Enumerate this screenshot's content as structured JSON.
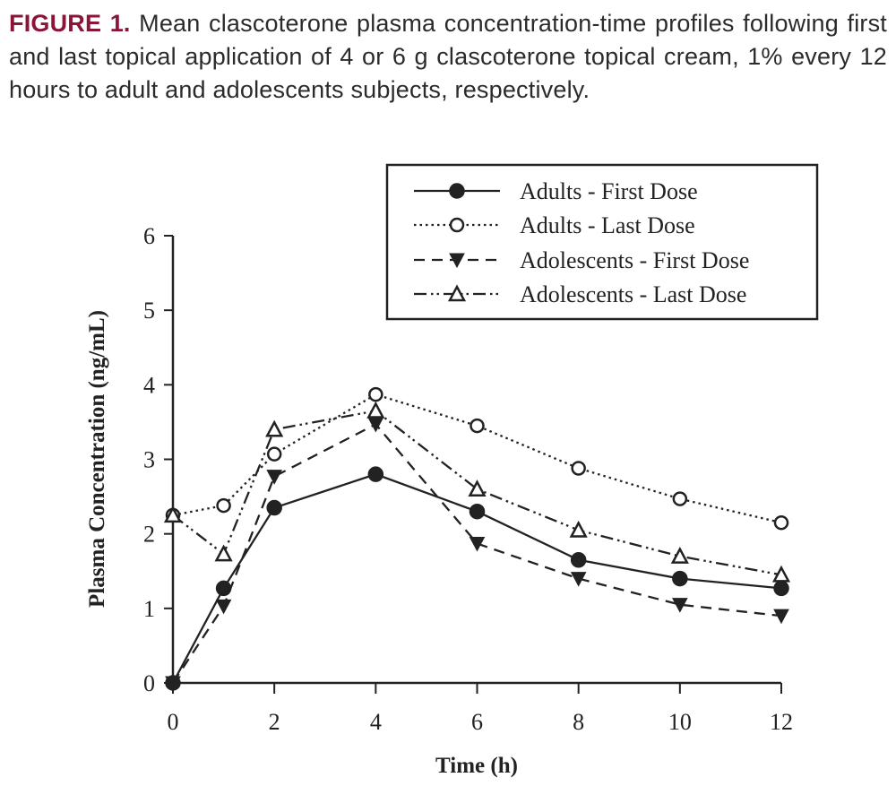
{
  "caption": {
    "label": "FIGURE 1.",
    "text": " Mean clascoterone plasma concentration-time profiles following first and last topical application of 4 or 6 g clascoterone topical cream, 1%  every 12 hours to adult and adolescents subjects, respectively."
  },
  "colors": {
    "caption_label": "#8a1538",
    "ink": "#222222"
  },
  "chart_data": {
    "type": "line",
    "title": "",
    "xlabel": "Time (h)",
    "ylabel": "Plasma Concentration (ng/mL)",
    "xlim": [
      0,
      12
    ],
    "ylim": [
      0,
      6
    ],
    "xticks": [
      0,
      2,
      4,
      6,
      8,
      10,
      12
    ],
    "yticks": [
      0,
      1,
      2,
      3,
      4,
      5,
      6
    ],
    "grid": false,
    "legend_position": "top-right",
    "x": [
      0,
      1,
      2,
      4,
      6,
      8,
      10,
      12
    ],
    "series": [
      {
        "name": "Adults - First Dose",
        "marker": "filled-circle",
        "line": "solid",
        "values": [
          0,
          1.27,
          2.35,
          2.8,
          2.3,
          1.65,
          1.4,
          1.27
        ]
      },
      {
        "name": "Adults - Last Dose",
        "marker": "open-circle",
        "line": "dotted",
        "values": [
          2.25,
          2.38,
          3.07,
          3.87,
          3.45,
          2.88,
          2.47,
          2.15
        ]
      },
      {
        "name": "Adolescents - First Dose",
        "marker": "filled-down-triangle",
        "line": "dashed",
        "values": [
          0,
          1.03,
          2.77,
          3.47,
          1.87,
          1.4,
          1.05,
          0.9
        ]
      },
      {
        "name": "Adolescents - Last Dose",
        "marker": "open-up-triangle",
        "line": "dash-dot-dot",
        "values": [
          2.25,
          1.73,
          3.4,
          3.65,
          2.6,
          2.05,
          1.7,
          1.45
        ]
      }
    ]
  }
}
